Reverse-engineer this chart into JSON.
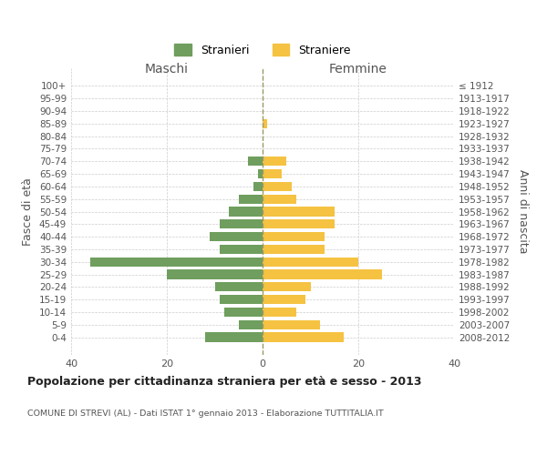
{
  "age_groups": [
    "100+",
    "95-99",
    "90-94",
    "85-89",
    "80-84",
    "75-79",
    "70-74",
    "65-69",
    "60-64",
    "55-59",
    "50-54",
    "45-49",
    "40-44",
    "35-39",
    "30-34",
    "25-29",
    "20-24",
    "15-19",
    "10-14",
    "5-9",
    "0-4"
  ],
  "birth_years": [
    "≤ 1912",
    "1913-1917",
    "1918-1922",
    "1923-1927",
    "1928-1932",
    "1933-1937",
    "1938-1942",
    "1943-1947",
    "1948-1952",
    "1953-1957",
    "1958-1962",
    "1963-1967",
    "1968-1972",
    "1973-1977",
    "1978-1982",
    "1983-1987",
    "1988-1992",
    "1993-1997",
    "1998-2002",
    "2003-2007",
    "2008-2012"
  ],
  "maschi": [
    0,
    0,
    0,
    0,
    0,
    0,
    3,
    1,
    2,
    5,
    7,
    9,
    11,
    9,
    36,
    20,
    10,
    9,
    8,
    5,
    12
  ],
  "femmine": [
    0,
    0,
    0,
    1,
    0,
    0,
    5,
    4,
    6,
    7,
    15,
    15,
    13,
    13,
    20,
    25,
    10,
    9,
    7,
    12,
    17
  ],
  "maschi_color": "#6f9e5e",
  "femmine_color": "#f5c242",
  "title_main": "Popolazione per cittadinanza straniera per età e sesso - 2013",
  "title_sub": "COMUNE DI STREVI (AL) - Dati ISTAT 1° gennaio 2013 - Elaborazione TUTTITALIA.IT",
  "ylabel_left": "Fasce di età",
  "ylabel_right": "Anni di nascita",
  "xlabel_left": "Maschi",
  "xlabel_right": "Femmine",
  "legend_stranieri": "Stranieri",
  "legend_straniere": "Straniere",
  "xlim": 40,
  "background_color": "#ffffff",
  "grid_color": "#cccccc",
  "bar_height": 0.75
}
